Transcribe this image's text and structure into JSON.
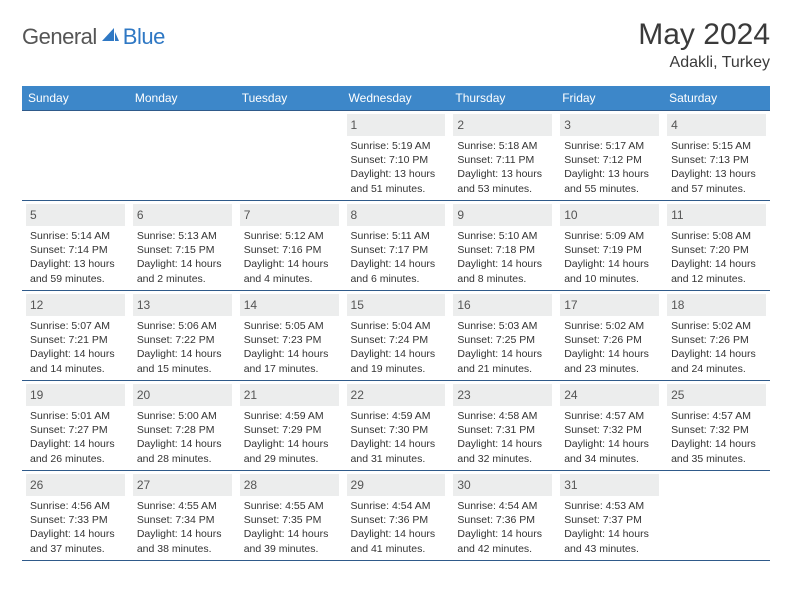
{
  "logo": {
    "word1": "General",
    "word2": "Blue"
  },
  "header": {
    "month_title": "May 2024",
    "location": "Adakli, Turkey"
  },
  "colors": {
    "header_bg": "#3d87c9",
    "header_text": "#ffffff",
    "daynum_bg": "#eceded",
    "rule": "#2f5a8a",
    "logo_gray": "#555555",
    "logo_blue": "#2f78c4"
  },
  "day_names": [
    "Sunday",
    "Monday",
    "Tuesday",
    "Wednesday",
    "Thursday",
    "Friday",
    "Saturday"
  ],
  "weeks": [
    [
      {
        "n": ""
      },
      {
        "n": ""
      },
      {
        "n": ""
      },
      {
        "n": "1",
        "sr": "5:19 AM",
        "ss": "7:10 PM",
        "dl": "13 hours and 51 minutes."
      },
      {
        "n": "2",
        "sr": "5:18 AM",
        "ss": "7:11 PM",
        "dl": "13 hours and 53 minutes."
      },
      {
        "n": "3",
        "sr": "5:17 AM",
        "ss": "7:12 PM",
        "dl": "13 hours and 55 minutes."
      },
      {
        "n": "4",
        "sr": "5:15 AM",
        "ss": "7:13 PM",
        "dl": "13 hours and 57 minutes."
      }
    ],
    [
      {
        "n": "5",
        "sr": "5:14 AM",
        "ss": "7:14 PM",
        "dl": "13 hours and 59 minutes."
      },
      {
        "n": "6",
        "sr": "5:13 AM",
        "ss": "7:15 PM",
        "dl": "14 hours and 2 minutes."
      },
      {
        "n": "7",
        "sr": "5:12 AM",
        "ss": "7:16 PM",
        "dl": "14 hours and 4 minutes."
      },
      {
        "n": "8",
        "sr": "5:11 AM",
        "ss": "7:17 PM",
        "dl": "14 hours and 6 minutes."
      },
      {
        "n": "9",
        "sr": "5:10 AM",
        "ss": "7:18 PM",
        "dl": "14 hours and 8 minutes."
      },
      {
        "n": "10",
        "sr": "5:09 AM",
        "ss": "7:19 PM",
        "dl": "14 hours and 10 minutes."
      },
      {
        "n": "11",
        "sr": "5:08 AM",
        "ss": "7:20 PM",
        "dl": "14 hours and 12 minutes."
      }
    ],
    [
      {
        "n": "12",
        "sr": "5:07 AM",
        "ss": "7:21 PM",
        "dl": "14 hours and 14 minutes."
      },
      {
        "n": "13",
        "sr": "5:06 AM",
        "ss": "7:22 PM",
        "dl": "14 hours and 15 minutes."
      },
      {
        "n": "14",
        "sr": "5:05 AM",
        "ss": "7:23 PM",
        "dl": "14 hours and 17 minutes."
      },
      {
        "n": "15",
        "sr": "5:04 AM",
        "ss": "7:24 PM",
        "dl": "14 hours and 19 minutes."
      },
      {
        "n": "16",
        "sr": "5:03 AM",
        "ss": "7:25 PM",
        "dl": "14 hours and 21 minutes."
      },
      {
        "n": "17",
        "sr": "5:02 AM",
        "ss": "7:26 PM",
        "dl": "14 hours and 23 minutes."
      },
      {
        "n": "18",
        "sr": "5:02 AM",
        "ss": "7:26 PM",
        "dl": "14 hours and 24 minutes."
      }
    ],
    [
      {
        "n": "19",
        "sr": "5:01 AM",
        "ss": "7:27 PM",
        "dl": "14 hours and 26 minutes."
      },
      {
        "n": "20",
        "sr": "5:00 AM",
        "ss": "7:28 PM",
        "dl": "14 hours and 28 minutes."
      },
      {
        "n": "21",
        "sr": "4:59 AM",
        "ss": "7:29 PM",
        "dl": "14 hours and 29 minutes."
      },
      {
        "n": "22",
        "sr": "4:59 AM",
        "ss": "7:30 PM",
        "dl": "14 hours and 31 minutes."
      },
      {
        "n": "23",
        "sr": "4:58 AM",
        "ss": "7:31 PM",
        "dl": "14 hours and 32 minutes."
      },
      {
        "n": "24",
        "sr": "4:57 AM",
        "ss": "7:32 PM",
        "dl": "14 hours and 34 minutes."
      },
      {
        "n": "25",
        "sr": "4:57 AM",
        "ss": "7:32 PM",
        "dl": "14 hours and 35 minutes."
      }
    ],
    [
      {
        "n": "26",
        "sr": "4:56 AM",
        "ss": "7:33 PM",
        "dl": "14 hours and 37 minutes."
      },
      {
        "n": "27",
        "sr": "4:55 AM",
        "ss": "7:34 PM",
        "dl": "14 hours and 38 minutes."
      },
      {
        "n": "28",
        "sr": "4:55 AM",
        "ss": "7:35 PM",
        "dl": "14 hours and 39 minutes."
      },
      {
        "n": "29",
        "sr": "4:54 AM",
        "ss": "7:36 PM",
        "dl": "14 hours and 41 minutes."
      },
      {
        "n": "30",
        "sr": "4:54 AM",
        "ss": "7:36 PM",
        "dl": "14 hours and 42 minutes."
      },
      {
        "n": "31",
        "sr": "4:53 AM",
        "ss": "7:37 PM",
        "dl": "14 hours and 43 minutes."
      },
      {
        "n": ""
      }
    ]
  ],
  "labels": {
    "sunrise": "Sunrise:",
    "sunset": "Sunset:",
    "daylight": "Daylight:"
  }
}
